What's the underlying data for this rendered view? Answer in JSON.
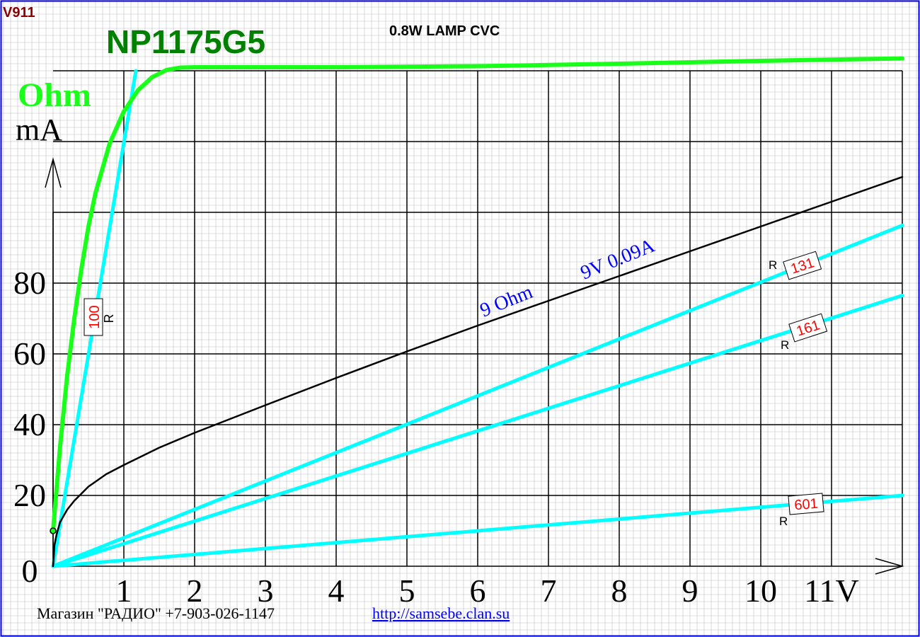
{
  "header": {
    "code": "V911",
    "model": "NP1175G5",
    "title": "0.8W LAMP CVC",
    "ohm_label": "Ohm"
  },
  "footer": {
    "shop": "Магазин \"РАДИО\" +7-903-026-1147",
    "url": "http://samsebe.clan.su"
  },
  "annotations": {
    "ohm9": "9 Ohm",
    "v9": "9V 0.09A",
    "r_prefix": "R"
  },
  "colors": {
    "lamp": "#000000",
    "resistance": "#19ff19",
    "load_lines": "#00ffff",
    "title": "#008000",
    "code": "#8b0000",
    "annotation": "#0000ff",
    "badge_text": "#ff0000",
    "grid_minor": "#c0c0c0",
    "grid_major": "#000000"
  },
  "chart_data": {
    "type": "line",
    "xlabel": "V",
    "ylabel": "mA",
    "xlim": [
      0,
      12
    ],
    "ylim": [
      0,
      140
    ],
    "x_ticks": [
      "1",
      "2",
      "3",
      "4",
      "5",
      "6",
      "7",
      "8",
      "9",
      "10",
      "11V"
    ],
    "y_ticks": [
      "0",
      "20",
      "40",
      "60",
      "80"
    ],
    "grid": true,
    "series": [
      {
        "name": "",
        "role": "lamp_current",
        "color": "#000000",
        "points": [
          [
            0,
            0
          ],
          [
            0.02,
            6
          ],
          [
            0.05,
            9
          ],
          [
            0.1,
            12.5
          ],
          [
            0.2,
            16
          ],
          [
            0.3,
            18.5
          ],
          [
            0.5,
            22.5
          ],
          [
            0.75,
            26
          ],
          [
            1,
            28.6
          ],
          [
            1.5,
            33.5
          ],
          [
            2,
            37.7
          ],
          [
            2.5,
            41.6
          ],
          [
            3,
            45.5
          ],
          [
            4,
            53.2
          ],
          [
            5,
            60.7
          ],
          [
            6,
            68
          ],
          [
            7,
            75
          ],
          [
            8,
            82
          ],
          [
            9,
            89
          ],
          [
            10,
            96
          ],
          [
            11,
            103
          ],
          [
            12,
            110
          ]
        ]
      },
      {
        "name": "Ohm",
        "role": "resistance",
        "color": "#19ff19",
        "points": [
          [
            0,
            10
          ],
          [
            0.05,
            22
          ],
          [
            0.1,
            34
          ],
          [
            0.2,
            54
          ],
          [
            0.3,
            70
          ],
          [
            0.4,
            84
          ],
          [
            0.5,
            96
          ],
          [
            0.6,
            105.5
          ],
          [
            0.8,
            119.5
          ],
          [
            1,
            128.5
          ],
          [
            1.2,
            134.5
          ],
          [
            1.4,
            138.2
          ],
          [
            1.6,
            140.2
          ],
          [
            1.8,
            140.9
          ],
          [
            2,
            141
          ],
          [
            4,
            141
          ],
          [
            6,
            141.3
          ],
          [
            8,
            142
          ],
          [
            10,
            142.8
          ],
          [
            12,
            143.5
          ]
        ]
      },
      {
        "name": "R 100",
        "badge": "100",
        "role": "load_line",
        "color": "#00ffff",
        "points": [
          [
            0,
            0
          ],
          [
            1.17,
            140
          ]
        ]
      },
      {
        "name": "R 131",
        "badge": "131",
        "role": "load_line",
        "color": "#00ffff",
        "points": [
          [
            0,
            0
          ],
          [
            12,
            96.3
          ]
        ]
      },
      {
        "name": "R 161",
        "badge": "161",
        "role": "load_line",
        "color": "#00ffff",
        "points": [
          [
            0,
            0
          ],
          [
            12,
            76.5
          ]
        ]
      },
      {
        "name": "R 601",
        "badge": "601",
        "role": "load_line",
        "color": "#00ffff",
        "points": [
          [
            0,
            0
          ],
          [
            12,
            20
          ]
        ]
      }
    ]
  }
}
